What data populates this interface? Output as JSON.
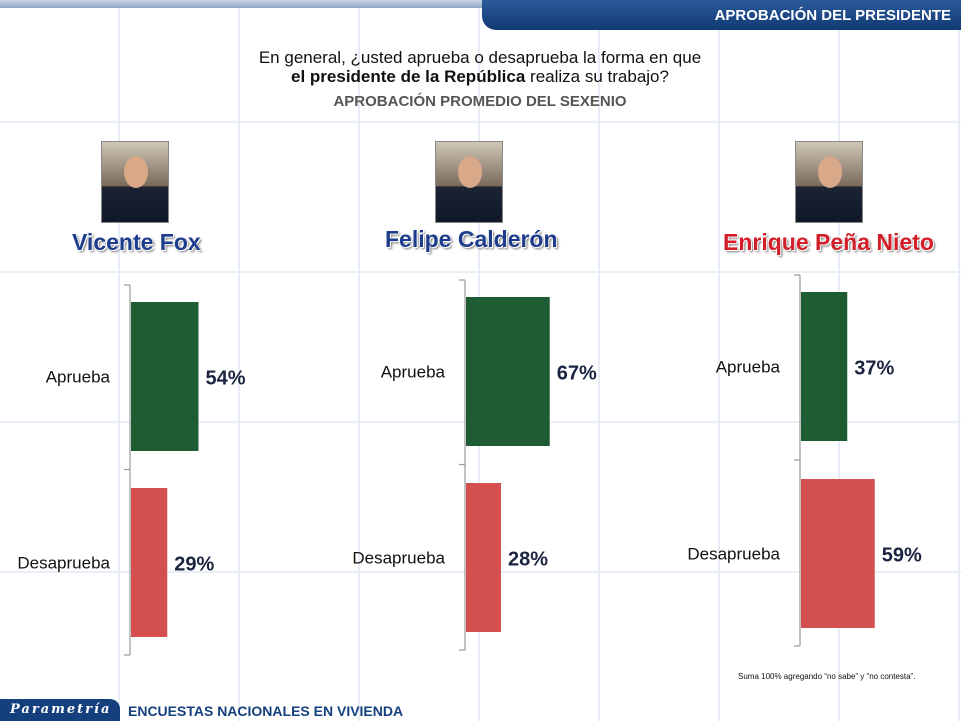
{
  "header": {
    "title": "APROBACIÓN DEL PRESIDENTE"
  },
  "question": {
    "line1": "En general, ¿usted aprueba o desaprueba la forma en que",
    "line2_bold": "el presidente de la República",
    "line2_rest": " realiza su trabajo?"
  },
  "subtitle": "APROBACIÓN PROMEDIO DEL SEXENIO",
  "chart_data": [
    {
      "type": "bar",
      "title": "Vicente Fox",
      "categories": [
        "Aprueba",
        "Desaprueba"
      ],
      "values": [
        54,
        29
      ],
      "unit": "%",
      "colors": [
        "#1e5c34",
        "#d45050"
      ]
    },
    {
      "type": "bar",
      "title": "Felipe Calderón",
      "categories": [
        "Aprueba",
        "Desaprueba"
      ],
      "values": [
        67,
        28
      ],
      "unit": "%",
      "colors": [
        "#1e5c34",
        "#d45050"
      ]
    },
    {
      "type": "bar",
      "title": "Enrique Peña Nieto",
      "categories": [
        "Aprueba",
        "Desaprueba"
      ],
      "values": [
        37,
        59
      ],
      "unit": "%",
      "colors": [
        "#1e5c34",
        "#d45050"
      ]
    }
  ],
  "note": "Suma 100% agregando “no sabe” y “no contesta”.",
  "footer": {
    "logo": "Parametría",
    "text": "ENCUESTAS NACIONALES  EN VIVIENDA"
  }
}
